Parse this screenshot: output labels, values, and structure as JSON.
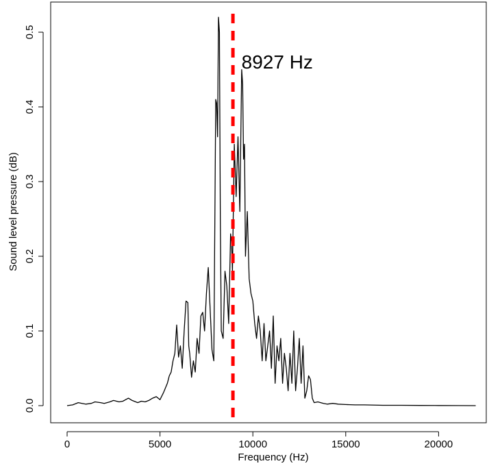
{
  "chart_data": {
    "type": "line",
    "title": "",
    "xlabel": "Frequency (Hz)",
    "ylabel": "Sound level pressure (dB)",
    "xlim": [
      0,
      22050
    ],
    "ylim": [
      0,
      0.52
    ],
    "x_ticks": [
      0,
      5000,
      10000,
      15000,
      20000
    ],
    "x_tick_labels": [
      "0",
      "5000",
      "10000",
      "15000",
      "20000"
    ],
    "y_ticks": [
      0.0,
      0.1,
      0.2,
      0.3,
      0.4,
      0.5
    ],
    "y_tick_labels": [
      "0.0",
      "0.1",
      "0.2",
      "0.3",
      "0.4",
      "0.5"
    ],
    "grid": false,
    "series": [
      {
        "color": "#000000",
        "x": [
          0,
          300,
          600,
          800,
          1000,
          1300,
          1500,
          1800,
          2000,
          2300,
          2500,
          2800,
          3000,
          3300,
          3500,
          3800,
          4000,
          4200,
          4400,
          4600,
          4800,
          5000,
          5200,
          5400,
          5500,
          5600,
          5700,
          5800,
          5900,
          6000,
          6100,
          6200,
          6300,
          6400,
          6500,
          6550,
          6600,
          6700,
          6800,
          6900,
          7000,
          7100,
          7200,
          7300,
          7400,
          7500,
          7600,
          7700,
          7800,
          7900,
          8000,
          8050,
          8100,
          8150,
          8200,
          8250,
          8300,
          8400,
          8500,
          8600,
          8700,
          8800,
          8850,
          8900,
          9000,
          9100,
          9200,
          9300,
          9400,
          9450,
          9500,
          9550,
          9600,
          9700,
          9800,
          9900,
          10000,
          10100,
          10200,
          10300,
          10400,
          10500,
          10600,
          10700,
          10800,
          10900,
          11000,
          11100,
          11200,
          11300,
          11400,
          11500,
          11600,
          11700,
          11800,
          11900,
          12000,
          12100,
          12200,
          12300,
          12400,
          12500,
          12600,
          12700,
          12800,
          12900,
          13000,
          13100,
          13200,
          13300,
          13500,
          13800,
          14000,
          14300,
          14600,
          15000,
          15500,
          16000,
          17000,
          18000,
          19000,
          20000,
          21000,
          22000
        ],
        "y": [
          0.0,
          0.001,
          0.004,
          0.003,
          0.002,
          0.003,
          0.005,
          0.004,
          0.003,
          0.005,
          0.007,
          0.005,
          0.006,
          0.01,
          0.007,
          0.004,
          0.006,
          0.005,
          0.007,
          0.01,
          0.012,
          0.008,
          0.018,
          0.03,
          0.04,
          0.045,
          0.06,
          0.07,
          0.108,
          0.065,
          0.08,
          0.05,
          0.1,
          0.14,
          0.138,
          0.08,
          0.07,
          0.038,
          0.06,
          0.045,
          0.09,
          0.07,
          0.12,
          0.125,
          0.1,
          0.15,
          0.185,
          0.13,
          0.075,
          0.06,
          0.41,
          0.405,
          0.36,
          0.52,
          0.5,
          0.25,
          0.1,
          0.09,
          0.18,
          0.16,
          0.11,
          0.23,
          0.22,
          0.18,
          0.35,
          0.28,
          0.36,
          0.26,
          0.45,
          0.43,
          0.33,
          0.35,
          0.2,
          0.26,
          0.17,
          0.15,
          0.14,
          0.11,
          0.09,
          0.12,
          0.1,
          0.06,
          0.11,
          0.06,
          0.08,
          0.1,
          0.05,
          0.12,
          0.03,
          0.08,
          0.06,
          0.09,
          0.03,
          0.07,
          0.05,
          0.02,
          0.07,
          0.03,
          0.1,
          0.02,
          0.05,
          0.09,
          0.03,
          0.08,
          0.01,
          0.02,
          0.04,
          0.035,
          0.01,
          0.004,
          0.005,
          0.003,
          0.002,
          0.003,
          0.002,
          0.0015,
          0.001,
          0.001,
          0.0005,
          0.0005,
          0.0003,
          0.0002,
          0.0001,
          0.0
        ]
      }
    ],
    "vline": {
      "x": 8927,
      "color": "#ff0000",
      "style": "dashed"
    },
    "annotation": {
      "text": "8927 Hz",
      "x": 9500,
      "y": 0.455
    }
  }
}
